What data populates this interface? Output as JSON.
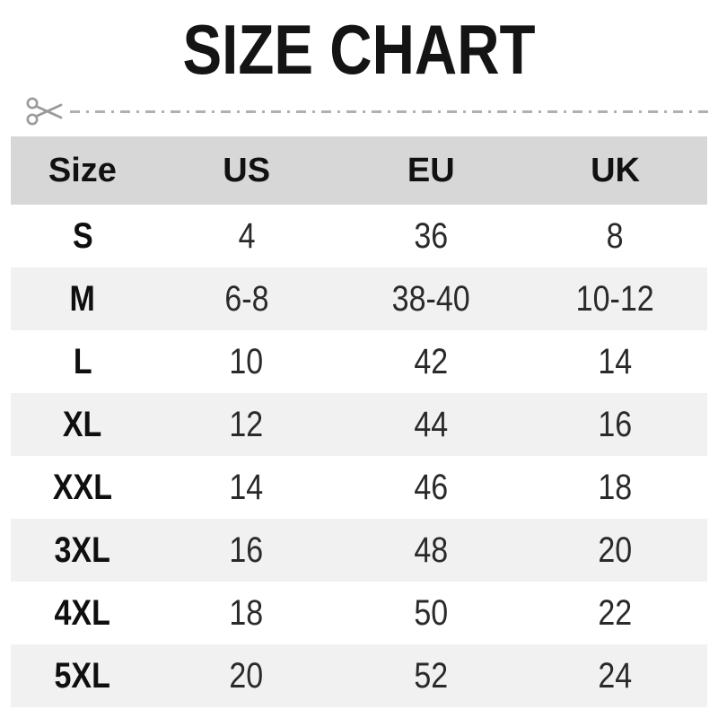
{
  "title": "SIZE CHART",
  "chart_data": {
    "type": "table",
    "title": "SIZE CHART",
    "headers": [
      "Size",
      "US",
      "EU",
      "UK"
    ],
    "rows": [
      [
        "S",
        "4",
        "36",
        "8"
      ],
      [
        "M",
        "6-8",
        "38-40",
        "10-12"
      ],
      [
        "L",
        "10",
        "42",
        "14"
      ],
      [
        "XL",
        "12",
        "44",
        "16"
      ],
      [
        "XXL",
        "14",
        "46",
        "18"
      ],
      [
        "3XL",
        "16",
        "48",
        "20"
      ],
      [
        "4XL",
        "18",
        "50",
        "22"
      ],
      [
        "5XL",
        "20",
        "52",
        "24"
      ]
    ]
  },
  "colors": {
    "header_bg": "#d7d7d7",
    "stripe_bg": "#f1f1f1",
    "title_text": "#141414",
    "cell_text": "#2a2a2a",
    "cut_line": "#b0b0b0",
    "scissors": "#9b9b9b"
  }
}
